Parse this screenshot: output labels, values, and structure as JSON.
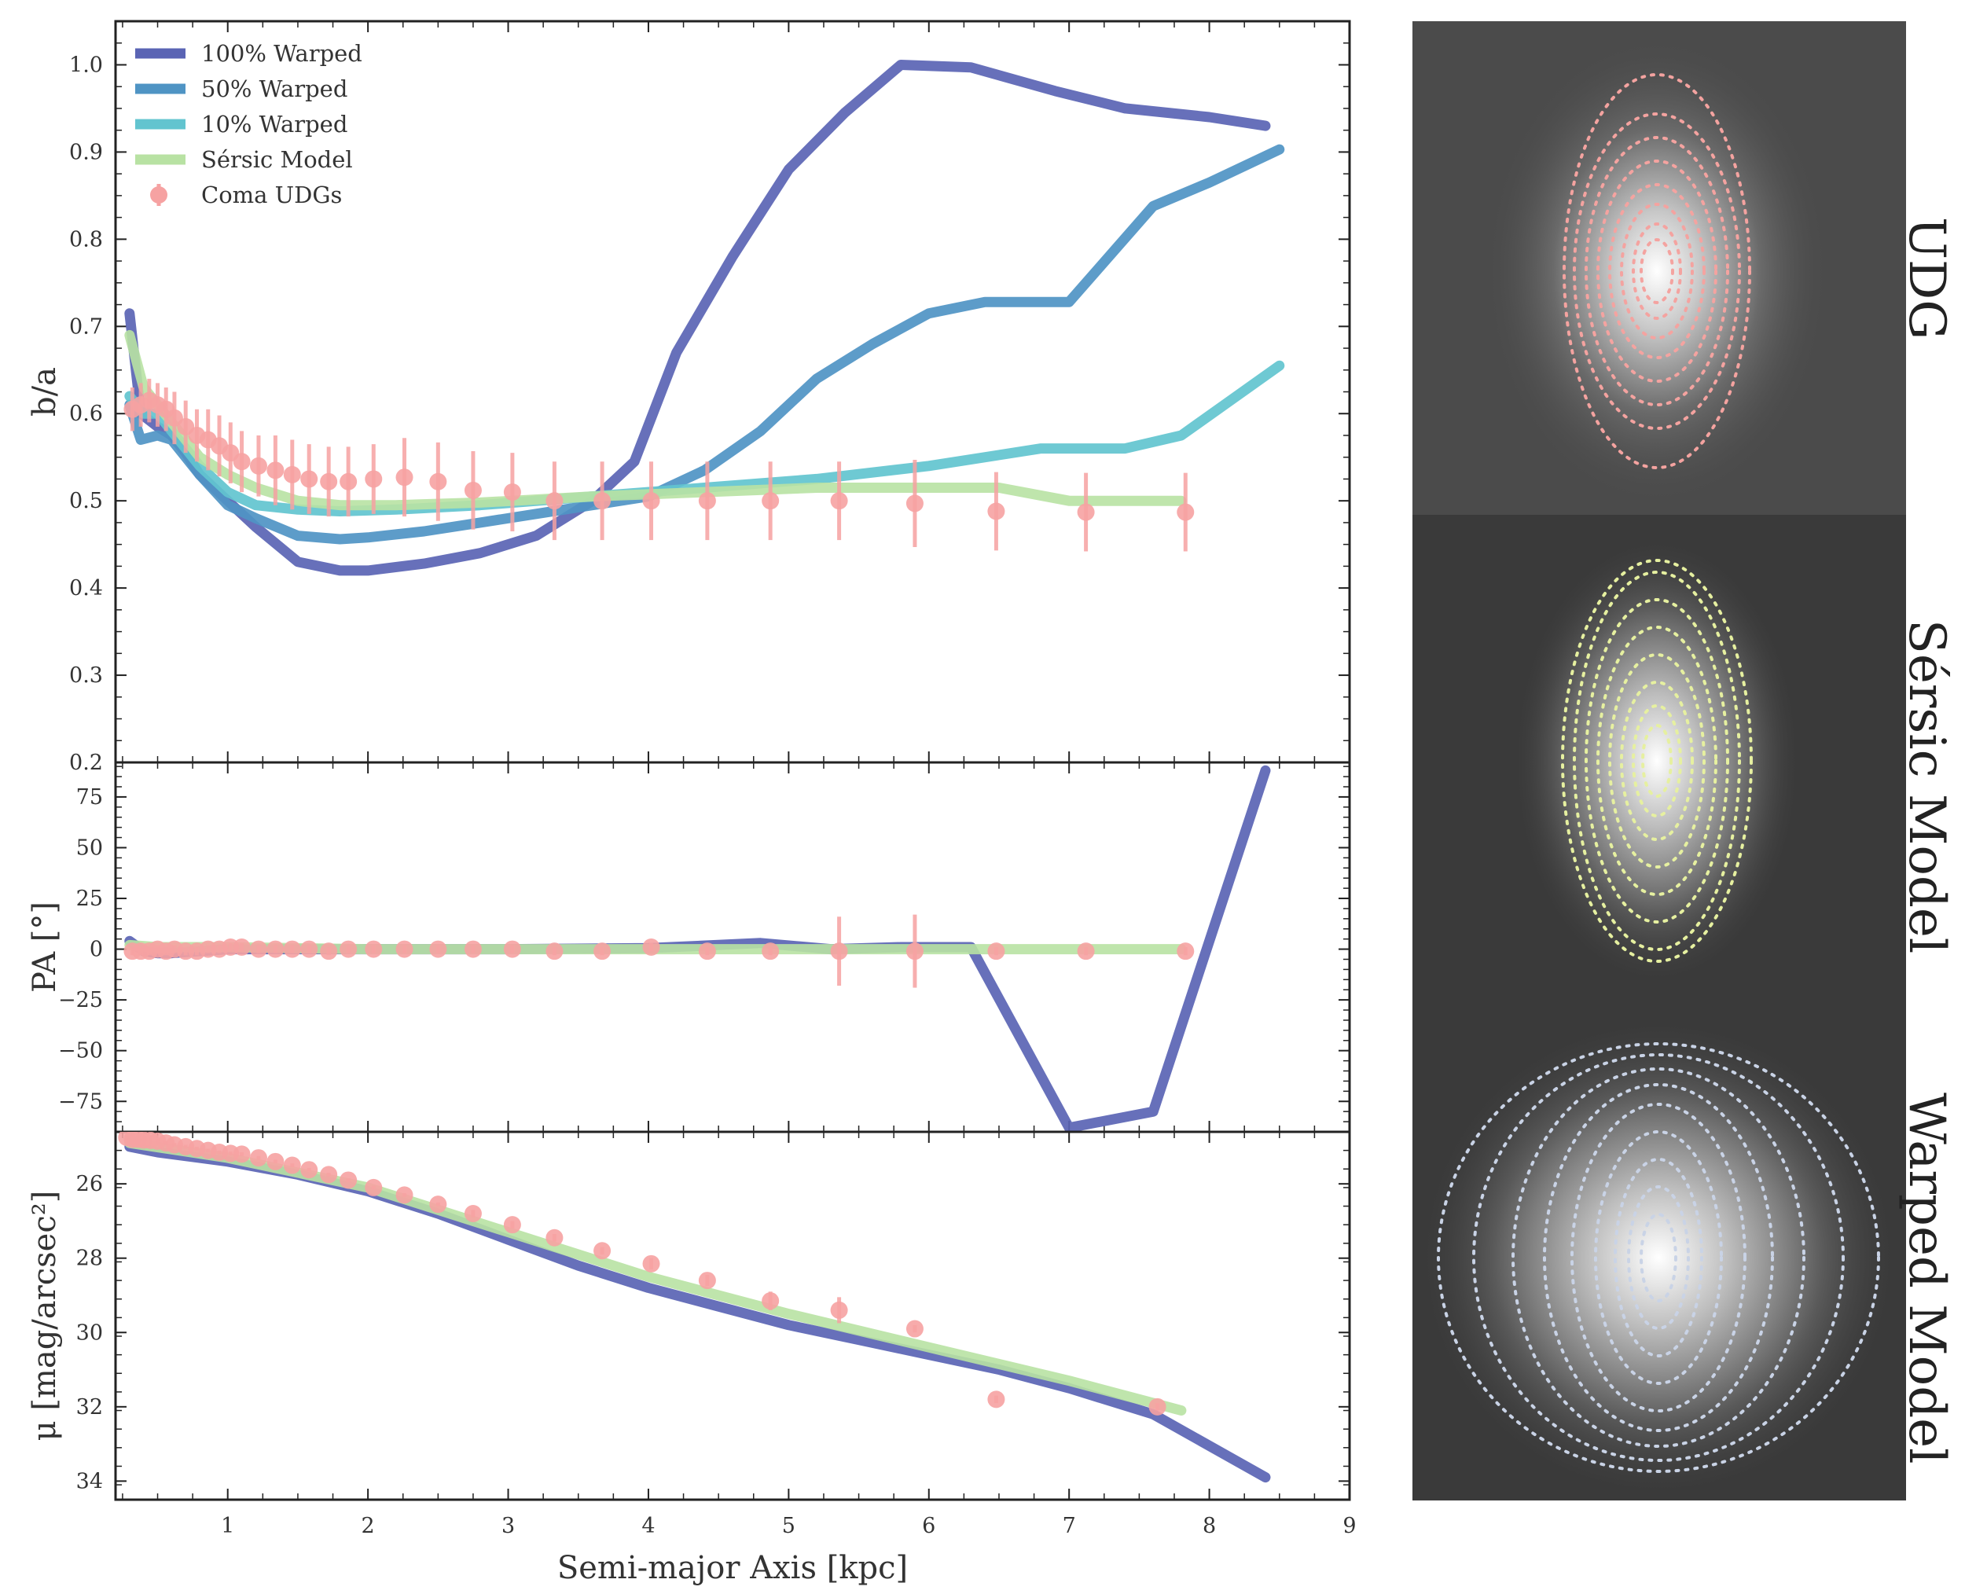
{
  "colors": {
    "warp100": "#5a64b4",
    "warp50": "#4f94c4",
    "warp10": "#62c4cf",
    "sersic": "#b8e2a3",
    "coma": "#f6a2a2"
  },
  "chart_data": [
    {
      "type": "line",
      "id": "ba",
      "ylabel": "b/a",
      "xlim": [
        0.2,
        9
      ],
      "ylim": [
        0.2,
        1.05
      ],
      "yticks": [
        "0.2",
        "0.3",
        "0.4",
        "0.5",
        "0.6",
        "0.7",
        "0.8",
        "0.9",
        "1.0"
      ],
      "legend": {
        "placement": "top-left",
        "entries": [
          "100% Warped",
          "50% Warped",
          "10% Warped",
          "Sérsic Model",
          "Coma UDGs"
        ]
      },
      "series": [
        {
          "name": "100% Warped",
          "x": [
            0.3,
            0.38,
            0.5,
            0.6,
            0.7,
            0.8,
            1.0,
            1.2,
            1.5,
            1.8,
            2.0,
            2.4,
            2.8,
            3.2,
            3.6,
            3.9,
            4.2,
            4.6,
            5.0,
            5.4,
            5.8,
            6.3,
            6.9,
            7.4,
            8.0,
            8.4
          ],
          "y": [
            0.715,
            0.6,
            0.585,
            0.575,
            0.555,
            0.53,
            0.5,
            0.47,
            0.43,
            0.42,
            0.42,
            0.428,
            0.44,
            0.46,
            0.5,
            0.545,
            0.67,
            0.78,
            0.88,
            0.945,
            1.0,
            0.997,
            0.97,
            0.95,
            0.94,
            0.93
          ]
        },
        {
          "name": "50% Warped",
          "x": [
            0.3,
            0.38,
            0.5,
            0.6,
            0.7,
            0.8,
            1.0,
            1.2,
            1.5,
            1.8,
            2.0,
            2.4,
            2.8,
            3.2,
            3.6,
            4.0,
            4.4,
            4.8,
            5.2,
            5.6,
            6.0,
            6.4,
            7.0,
            7.6,
            8.0,
            8.5
          ],
          "y": [
            0.61,
            0.57,
            0.575,
            0.57,
            0.55,
            0.53,
            0.495,
            0.48,
            0.46,
            0.456,
            0.458,
            0.465,
            0.475,
            0.485,
            0.495,
            0.505,
            0.535,
            0.58,
            0.64,
            0.68,
            0.715,
            0.728,
            0.728,
            0.838,
            0.865,
            0.903
          ]
        },
        {
          "name": "10% Warped",
          "x": [
            0.3,
            0.4,
            0.5,
            0.6,
            0.7,
            0.8,
            1.0,
            1.2,
            1.5,
            1.8,
            2.2,
            2.8,
            3.6,
            4.4,
            5.2,
            6.0,
            6.8,
            7.4,
            7.8,
            8.5
          ],
          "y": [
            0.62,
            0.6,
            0.6,
            0.58,
            0.56,
            0.54,
            0.51,
            0.495,
            0.49,
            0.488,
            0.49,
            0.495,
            0.505,
            0.515,
            0.525,
            0.54,
            0.56,
            0.56,
            0.575,
            0.655
          ]
        },
        {
          "name": "Sérsic Model",
          "x": [
            0.3,
            0.4,
            0.5,
            0.6,
            0.7,
            0.8,
            1.0,
            1.2,
            1.5,
            1.8,
            2.2,
            2.8,
            3.6,
            4.4,
            5.2,
            6.0,
            6.5,
            7.0,
            7.8
          ],
          "y": [
            0.69,
            0.63,
            0.61,
            0.59,
            0.57,
            0.55,
            0.53,
            0.515,
            0.5,
            0.495,
            0.495,
            0.498,
            0.505,
            0.51,
            0.515,
            0.515,
            0.515,
            0.5,
            0.5
          ]
        },
        {
          "name": "Coma UDGs",
          "x": [
            0.32,
            0.38,
            0.44,
            0.5,
            0.56,
            0.62,
            0.7,
            0.78,
            0.86,
            0.94,
            1.02,
            1.1,
            1.22,
            1.34,
            1.46,
            1.58,
            1.72,
            1.86,
            2.04,
            2.26,
            2.5,
            2.75,
            3.03,
            3.33,
            3.67,
            4.02,
            4.42,
            4.87,
            5.36,
            5.9,
            6.48,
            7.12,
            7.83
          ],
          "y": [
            0.605,
            0.61,
            0.615,
            0.61,
            0.605,
            0.595,
            0.585,
            0.575,
            0.57,
            0.563,
            0.555,
            0.545,
            0.54,
            0.535,
            0.53,
            0.525,
            0.522,
            0.522,
            0.525,
            0.527,
            0.522,
            0.512,
            0.51,
            0.5,
            0.5,
            0.5,
            0.5,
            0.5,
            0.5,
            0.497,
            0.488,
            0.487,
            0.487
          ],
          "err": [
            0.025,
            0.025,
            0.025,
            0.025,
            0.025,
            0.03,
            0.03,
            0.03,
            0.035,
            0.035,
            0.035,
            0.035,
            0.035,
            0.04,
            0.04,
            0.04,
            0.04,
            0.04,
            0.04,
            0.045,
            0.045,
            0.045,
            0.045,
            0.045,
            0.045,
            0.045,
            0.045,
            0.045,
            0.045,
            0.05,
            0.045,
            0.045,
            0.045
          ]
        }
      ]
    },
    {
      "type": "line",
      "id": "pa",
      "ylabel": "PA [°]",
      "xlim": [
        0.2,
        9
      ],
      "ylim": [
        -90,
        92
      ],
      "yticks": [
        "75",
        "50",
        "25",
        "0",
        "−25",
        "−50",
        "−75"
      ],
      "series": [
        {
          "name": "100% Warped",
          "x": [
            0.3,
            0.4,
            0.5,
            0.6,
            0.8,
            1.0,
            1.5,
            2.0,
            3.0,
            4.0,
            4.8,
            5.3,
            5.8,
            6.3,
            7.0,
            7.6,
            8.4
          ],
          "y": [
            4,
            -1,
            -2,
            -2,
            -1,
            0,
            0,
            0,
            0,
            0.5,
            3,
            0,
            1,
            1,
            -88,
            -80,
            88
          ]
        },
        {
          "name": "Sérsic Model",
          "x": [
            0.3,
            0.5,
            1.0,
            2.0,
            3.0,
            4.0,
            5.0,
            6.0,
            6.5,
            7.0,
            7.8
          ],
          "y": [
            2,
            1,
            1,
            0,
            0,
            0,
            0,
            0,
            0,
            0,
            0
          ]
        },
        {
          "name": "Coma UDGs",
          "x": [
            0.32,
            0.38,
            0.44,
            0.5,
            0.56,
            0.62,
            0.7,
            0.78,
            0.86,
            0.94,
            1.02,
            1.1,
            1.22,
            1.34,
            1.46,
            1.58,
            1.72,
            1.86,
            2.04,
            2.26,
            2.5,
            2.75,
            3.03,
            3.33,
            3.67,
            4.02,
            4.42,
            4.87,
            5.36,
            5.9,
            6.48,
            7.12,
            7.83
          ],
          "y": [
            -1,
            -1,
            -1,
            0,
            -1,
            0,
            -1,
            -1,
            0,
            0,
            1,
            1,
            0,
            0,
            0,
            0,
            -1,
            0,
            0,
            0,
            0,
            0,
            0,
            -1,
            -1,
            1,
            -1,
            -1,
            -1,
            -1,
            -1,
            -1,
            -1
          ],
          "err": [
            2,
            2,
            2,
            2,
            2,
            2,
            2,
            2,
            2,
            2,
            2,
            2,
            2,
            2,
            2,
            2,
            2,
            2,
            2,
            2,
            2,
            2,
            2,
            2,
            2,
            2,
            2,
            2,
            17,
            18,
            2,
            2,
            2
          ]
        }
      ]
    },
    {
      "type": "line",
      "id": "mu",
      "ylabel": "μ [mag/arcsec²]",
      "xlabel": "Semi-major Axis [kpc]",
      "xlim": [
        0.2,
        9
      ],
      "ylim": [
        34.5,
        24.6
      ],
      "yticks": [
        "26",
        "28",
        "30",
        "32",
        "34"
      ],
      "xticks": [
        "1",
        "2",
        "3",
        "4",
        "5",
        "6",
        "7",
        "8",
        "9"
      ],
      "series": [
        {
          "name": "100% Warped",
          "x": [
            0.3,
            0.5,
            1.0,
            1.5,
            2.0,
            2.5,
            3.0,
            3.5,
            4.0,
            4.5,
            5.0,
            5.5,
            6.0,
            6.5,
            7.0,
            7.6,
            8.4
          ],
          "y": [
            25.0,
            25.15,
            25.4,
            25.75,
            26.2,
            26.8,
            27.5,
            28.2,
            28.8,
            29.3,
            29.8,
            30.2,
            30.6,
            31.0,
            31.5,
            32.2,
            33.9
          ]
        },
        {
          "name": "Sérsic Model",
          "x": [
            0.3,
            1.0,
            2.0,
            3.0,
            4.0,
            5.0,
            6.0,
            7.0,
            7.8
          ],
          "y": [
            24.9,
            25.3,
            26.1,
            27.3,
            28.5,
            29.5,
            30.4,
            31.3,
            32.1
          ]
        },
        {
          "name": "Coma UDGs",
          "x": [
            0.28,
            0.32,
            0.36,
            0.4,
            0.45,
            0.5,
            0.56,
            0.62,
            0.7,
            0.78,
            0.86,
            0.94,
            1.02,
            1.1,
            1.22,
            1.34,
            1.46,
            1.58,
            1.72,
            1.86,
            2.04,
            2.26,
            2.5,
            2.75,
            3.03,
            3.33,
            3.67,
            4.02,
            4.42,
            4.87,
            5.36,
            5.9,
            6.48,
            7.63
          ],
          "y": [
            24.75,
            24.8,
            24.8,
            24.82,
            24.83,
            24.85,
            24.9,
            24.95,
            25.0,
            25.05,
            25.1,
            25.15,
            25.18,
            25.2,
            25.3,
            25.4,
            25.5,
            25.62,
            25.75,
            25.9,
            26.1,
            26.3,
            26.55,
            26.8,
            27.1,
            27.45,
            27.8,
            28.15,
            28.6,
            29.15,
            29.4,
            29.9,
            31.8,
            32.0
          ],
          "err": [
            0.05,
            0.05,
            0.05,
            0.05,
            0.05,
            0.05,
            0.05,
            0.05,
            0.05,
            0.05,
            0.05,
            0.05,
            0.05,
            0.05,
            0.05,
            0.05,
            0.05,
            0.05,
            0.05,
            0.05,
            0.05,
            0.05,
            0.05,
            0.1,
            0.1,
            0.1,
            0.1,
            0.15,
            0.15,
            0.25,
            0.35,
            0.1,
            0.1,
            0.1
          ]
        }
      ]
    }
  ],
  "panels": [
    {
      "label": "UDG",
      "contour_color": "#f4a3a0"
    },
    {
      "label": "Sérsic Model",
      "contour_color": "#e6f0a0"
    },
    {
      "label": "Warped Model",
      "contour_color": "#c9d3e6"
    }
  ]
}
